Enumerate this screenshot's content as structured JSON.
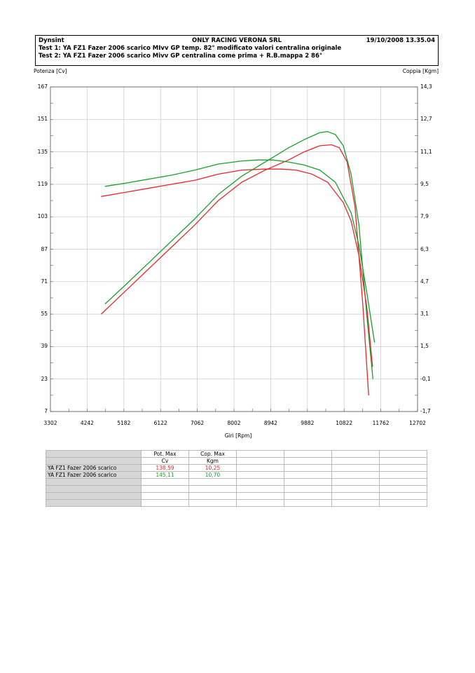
{
  "header": {
    "brand": "Dynsint",
    "company": "ONLY RACING VERONA SRL",
    "datetime": "19/10/2008  13.35.04",
    "test1": "Test 1: YA FZ1 Fazer 2006 scarico MIvv GP temp. 82° modificato valori centralina originale",
    "test2": "Test 2: YA FZ1 Fazer 2006 scarico Mivv GP centralina come prima + R.B.mappa 2 86°"
  },
  "colors": {
    "test1": "#e8262b",
    "test2": "#16a02a",
    "grid": "#c8c8c8"
  },
  "chart_data": {
    "type": "line",
    "title": "",
    "xlabel": "Giri [Rpm]",
    "ylabel_left": "Potenza [Cv]",
    "ylabel_right": "Coppia [Kgm]",
    "xlim": [
      3302,
      12702
    ],
    "ylim_left": [
      7,
      167
    ],
    "ylim_right": [
      -1.7,
      14.3
    ],
    "grid": true,
    "x_ticks": [
      "3302",
      "4242",
      "5182",
      "6122",
      "7062",
      "8002",
      "8942",
      "9882",
      "10822",
      "11762",
      "12702"
    ],
    "y_ticks_left": [
      "7",
      "23",
      "39",
      "55",
      "71",
      "87",
      "103",
      "119",
      "135",
      "151",
      "167"
    ],
    "y_ticks_right": [
      "-1,7",
      "-0,1",
      "1,5",
      "3,1",
      "4,7",
      "6,3",
      "7,9",
      "9,5",
      "11,1",
      "12,7",
      "14,3"
    ],
    "series": [
      {
        "name": "YA FZ1 Fazer 2006 scarico",
        "test": 1,
        "quantity": "power",
        "axis": "left",
        "x": [
          4600,
          5200,
          5800,
          6400,
          7000,
          7600,
          8200,
          8800,
          9400,
          9800,
          10200,
          10500,
          10700,
          10900,
          11100,
          11300,
          11450
        ],
        "y": [
          55,
          66,
          77,
          88,
          99,
          111,
          120,
          126,
          131,
          135,
          138,
          138.5,
          137,
          130,
          108,
          60,
          15
        ]
      },
      {
        "name": "YA FZ1 Fazer 2006 scarico",
        "test": 2,
        "quantity": "power",
        "axis": "left",
        "x": [
          4700,
          5200,
          5800,
          6400,
          7000,
          7600,
          8200,
          8800,
          9400,
          9800,
          10200,
          10400,
          10600,
          10800,
          11000,
          11200,
          11400,
          11560
        ],
        "y": [
          60,
          69,
          80,
          91,
          102,
          114,
          123,
          130,
          137,
          141,
          144.5,
          145,
          143.5,
          138,
          124,
          99,
          55,
          23
        ]
      },
      {
        "name": "YA FZ1 Fazer 2006 scarico",
        "test": 1,
        "quantity": "torque",
        "axis": "right",
        "x": [
          4600,
          5200,
          5800,
          6400,
          7000,
          7600,
          8200,
          8800,
          9200,
          9600,
          10000,
          10400,
          10800,
          11000,
          11200,
          11400,
          11550
        ],
        "y": [
          8.9,
          9.1,
          9.3,
          9.5,
          9.7,
          10.0,
          10.2,
          10.25,
          10.25,
          10.2,
          10.0,
          9.6,
          8.6,
          7.7,
          6.0,
          3.5,
          0.5
        ]
      },
      {
        "name": "YA FZ1 Fazer 2006 scarico",
        "test": 2,
        "quantity": "torque",
        "axis": "right",
        "x": [
          4700,
          5200,
          5800,
          6400,
          7000,
          7600,
          8200,
          8600,
          9000,
          9400,
          9800,
          10200,
          10600,
          11000,
          11200,
          11400,
          11600
        ],
        "y": [
          9.4,
          9.55,
          9.75,
          9.95,
          10.2,
          10.5,
          10.65,
          10.7,
          10.7,
          10.6,
          10.45,
          10.2,
          9.6,
          8.1,
          6.5,
          4.2,
          1.7
        ]
      }
    ]
  },
  "table": {
    "headers": [
      [
        "Pot. Max",
        "Cv"
      ],
      [
        "Cop. Max",
        "Kgm"
      ]
    ],
    "rows": [
      {
        "label": "YA FZ1 Fazer 2006 scarico",
        "pot": "138,59",
        "cop": "10,25",
        "color": "#e8262b"
      },
      {
        "label": "YA FZ1 Fazer 2006 scarico",
        "pot": "145,11",
        "cop": "10,70",
        "color": "#16a02a"
      }
    ]
  }
}
